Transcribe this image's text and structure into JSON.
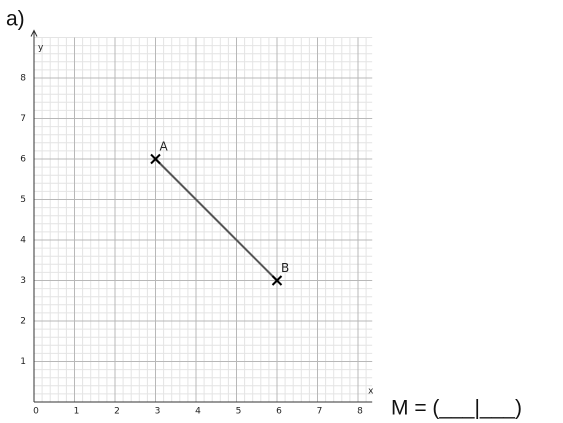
{
  "label": "a)",
  "answer": "M = (___|___)",
  "chart_data": {
    "type": "line",
    "x": [
      3,
      6
    ],
    "values": [
      6,
      3
    ],
    "point_labels": [
      "A",
      "B"
    ],
    "color": "#555555",
    "marker_color": "#000000",
    "xlabel": "x",
    "ylabel": "y",
    "xlim": [
      0,
      8.35
    ],
    "ylim": [
      0,
      9
    ],
    "xticks": [
      0,
      1,
      2,
      3,
      4,
      5,
      6,
      7,
      8
    ],
    "yticks": [
      1,
      2,
      3,
      4,
      5,
      6,
      7,
      8
    ],
    "grid": true,
    "minor_divisions": 5
  }
}
